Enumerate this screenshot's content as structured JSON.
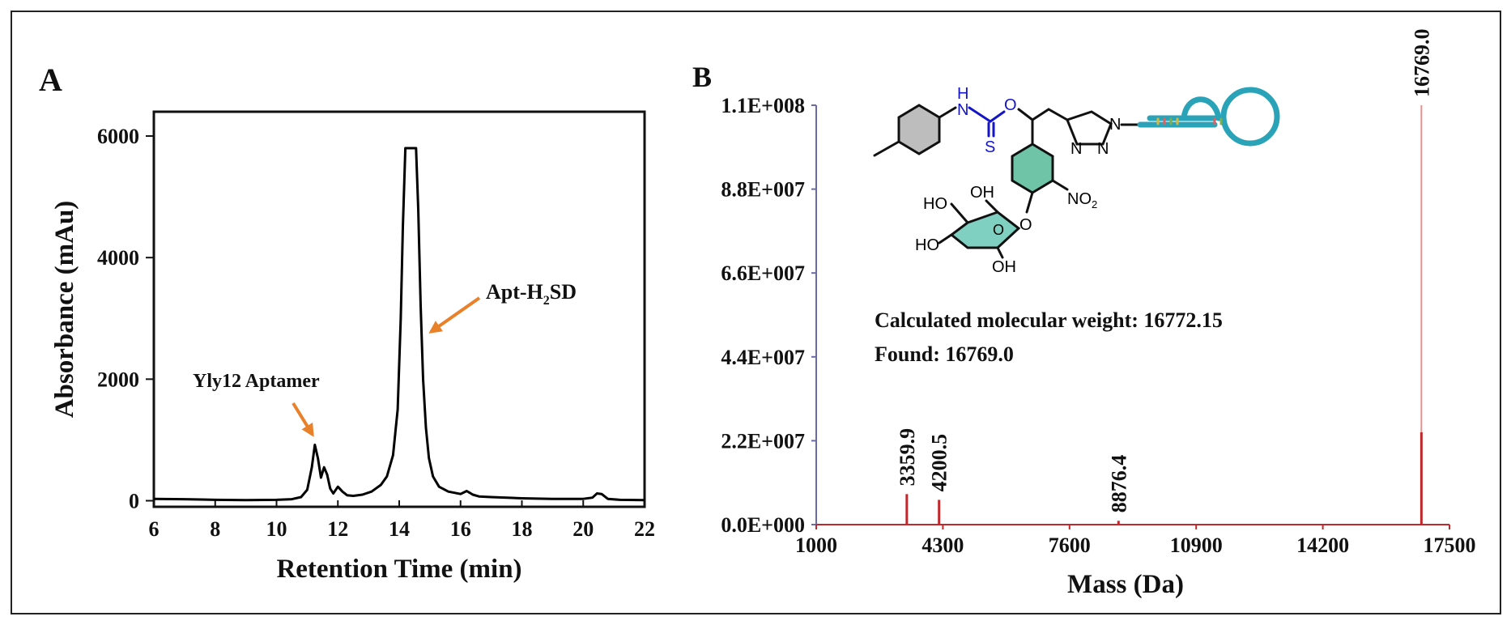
{
  "figure": {
    "panel_a_letter": "A",
    "panel_b_letter": "B"
  },
  "chart_data": [
    {
      "type": "line",
      "panel": "A",
      "xlabel": "Retention Time (min)",
      "ylabel": "Absorbance (mAu)",
      "xlim": [
        6,
        22
      ],
      "ylim": [
        -100,
        6400
      ],
      "xticks": [
        6,
        8,
        10,
        12,
        14,
        16,
        18,
        20,
        22
      ],
      "yticks": [
        0,
        2000,
        4000,
        6000
      ],
      "line_color": "#000000",
      "x": [
        6.0,
        7.0,
        8.0,
        9.0,
        10.0,
        10.5,
        10.8,
        11.0,
        11.15,
        11.25,
        11.35,
        11.45,
        11.55,
        11.65,
        11.75,
        11.85,
        12.0,
        12.15,
        12.3,
        12.5,
        12.8,
        13.1,
        13.4,
        13.6,
        13.8,
        13.95,
        14.05,
        14.12,
        14.2,
        14.25,
        14.55,
        14.62,
        14.7,
        14.78,
        14.87,
        14.97,
        15.1,
        15.3,
        15.6,
        16.0,
        16.2,
        16.3,
        16.4,
        16.6,
        17.0,
        18.0,
        19.0,
        20.0,
        20.3,
        20.45,
        20.6,
        20.8,
        21.2,
        22.0
      ],
      "y": [
        30,
        25,
        15,
        10,
        15,
        25,
        60,
        180,
        550,
        920,
        700,
        380,
        550,
        430,
        200,
        120,
        230,
        150,
        90,
        80,
        100,
        150,
        260,
        400,
        750,
        1500,
        3000,
        4500,
        5800,
        5800,
        5800,
        4800,
        3200,
        2000,
        1200,
        700,
        400,
        230,
        150,
        110,
        160,
        130,
        100,
        70,
        60,
        40,
        30,
        30,
        50,
        120,
        110,
        30,
        15,
        10
      ],
      "annotations": [
        {
          "label": "Yly12 Aptamer",
          "x": 11.25,
          "y": 920
        },
        {
          "label": "Apt-H",
          "sub": "2",
          "label_tail": "SD",
          "x": 14.4,
          "y": 2900
        }
      ],
      "arrow_color": "#E8812A"
    },
    {
      "type": "bar",
      "panel": "B",
      "xlabel": "Mass (Da)",
      "xlim": [
        1000,
        17500
      ],
      "ylim": [
        0,
        110000000
      ],
      "xticks": [
        1000,
        4300,
        7600,
        10900,
        14200,
        17500
      ],
      "yticks": [
        0,
        22000000,
        44000000,
        66000000,
        88000000,
        110000000
      ],
      "ytick_labels": [
        "0.0E+000",
        "2.2E+007",
        "4.4E+007",
        "6.6E+007",
        "8.8E+007",
        "1.1E+008"
      ],
      "bar_color": "#C0282D",
      "light_bar_color": "#E89090",
      "peaks": [
        {
          "mass": 3359.9,
          "intensity": 8000000,
          "label": "3359.9"
        },
        {
          "mass": 4200.5,
          "intensity": 6500000,
          "label": "4200.5"
        },
        {
          "mass": 8876.4,
          "intensity": 1000000,
          "label": "8876.4"
        },
        {
          "mass": 16769.0,
          "intensity": 110000000,
          "label": "16769.0"
        }
      ],
      "texts": [
        "Calculated molecular weight: 16772.15",
        "Found: 16769.0"
      ],
      "structure_labels": {
        "nh": "H",
        "n": "N",
        "o": "O",
        "s": "S",
        "no2": "NO",
        "no2_sub": "2",
        "ho1": "HO",
        "oh1": "OH",
        "ho2": "HO",
        "oh2": "OH",
        "triazole_n1": "N",
        "triazole_n2": "N",
        "triazole_n3": "N",
        "sugar_o": "O",
        "aryl_o": "O"
      }
    }
  ]
}
